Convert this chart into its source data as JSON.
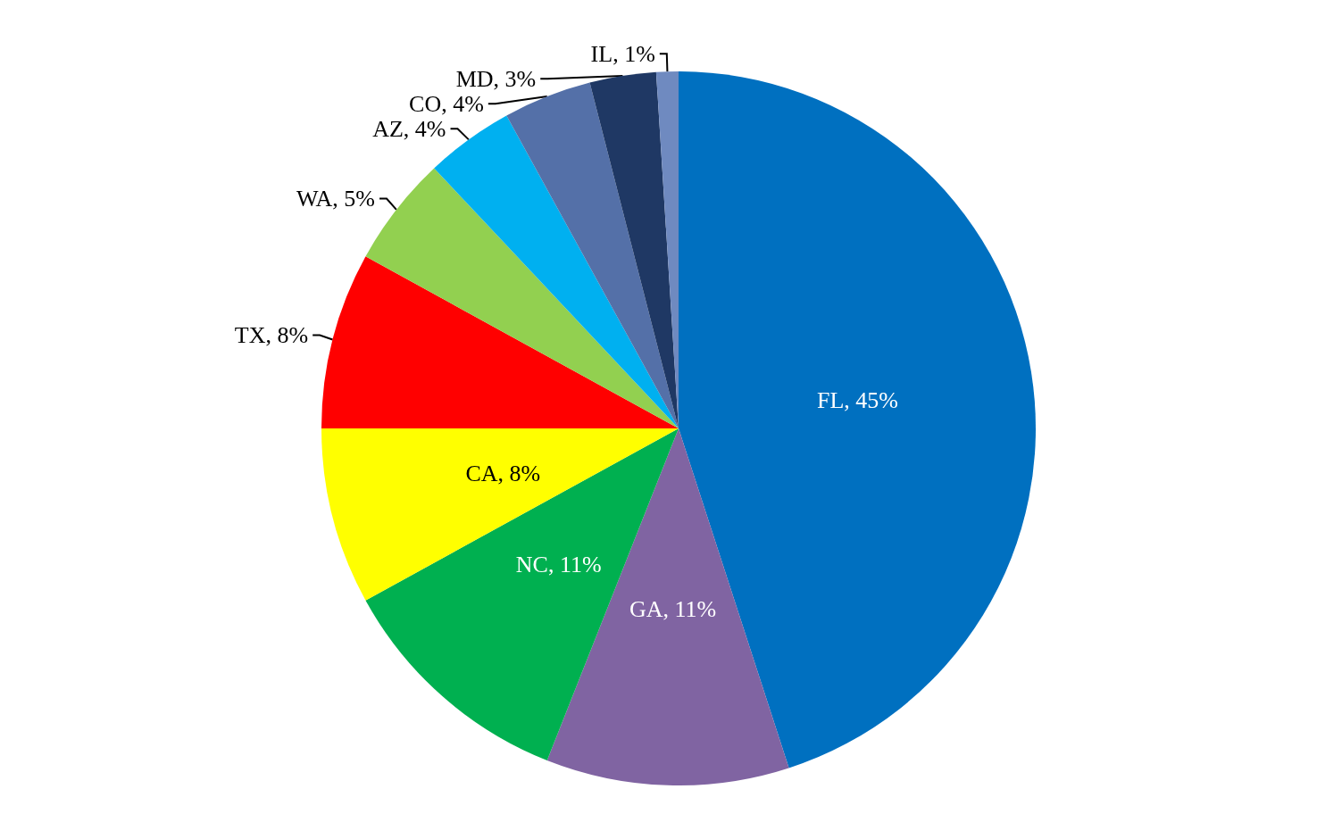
{
  "chart_data": {
    "type": "pie",
    "categories": [
      "FL",
      "GA",
      "NC",
      "CA",
      "TX",
      "WA",
      "AZ",
      "CO",
      "MD",
      "IL"
    ],
    "values": [
      45,
      11,
      11,
      8,
      8,
      5,
      4,
      4,
      3,
      1
    ],
    "value_labels": [
      ", 45%",
      ", 11%",
      ", 11%",
      ", 8%",
      ", 8%",
      ", 5%",
      ", 4%",
      ", 4%",
      ", 3%",
      ", 1%"
    ],
    "colors": [
      "#0070c0",
      "#8064a2",
      "#00b050",
      "#ffff00",
      "#ff0000",
      "#92d050",
      "#00b0f0",
      "#5470a8",
      "#1f3864",
      "#6f8ac0"
    ]
  }
}
